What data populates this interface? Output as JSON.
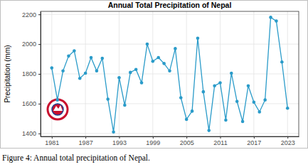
{
  "chart_data": {
    "type": "line",
    "title": "Annual Total Precipitation of Nepal",
    "y_label": "Precipitation (mm)",
    "x": [
      1981,
      1982,
      1983,
      1984,
      1985,
      1986,
      1987,
      1988,
      1989,
      1990,
      1991,
      1992,
      1993,
      1994,
      1995,
      1996,
      1997,
      1998,
      1999,
      2000,
      2001,
      2002,
      2003,
      2004,
      2005,
      2006,
      2007,
      2008,
      2009,
      2010,
      2011,
      2012,
      2013,
      2014,
      2015,
      2016,
      2017,
      2018,
      2019,
      2020,
      2021,
      2022,
      2023
    ],
    "values": [
      1840,
      1625,
      1820,
      1920,
      1955,
      1770,
      1805,
      1910,
      1820,
      1905,
      1630,
      1410,
      1775,
      1590,
      1810,
      1830,
      1740,
      2000,
      1885,
      1910,
      1870,
      1820,
      1970,
      1640,
      1495,
      1550,
      2040,
      1680,
      1420,
      1720,
      1740,
      1490,
      1805,
      1615,
      1480,
      1720,
      1610,
      1545,
      1625,
      2180,
      2155,
      1880,
      1570
    ],
    "color": "#2a9bc9",
    "marker": "circle",
    "line_style": "solid",
    "xlim": [
      1979,
      2025
    ],
    "xticks": [
      1981,
      1987,
      1993,
      1999,
      2005,
      2011,
      2017,
      2023
    ],
    "ylim": [
      1380,
      2220
    ],
    "yticks": [
      1400,
      1600,
      1800,
      2000,
      2200
    ],
    "grid": true
  },
  "caption": "Figure 4: Annual total precipitation of Nepal."
}
